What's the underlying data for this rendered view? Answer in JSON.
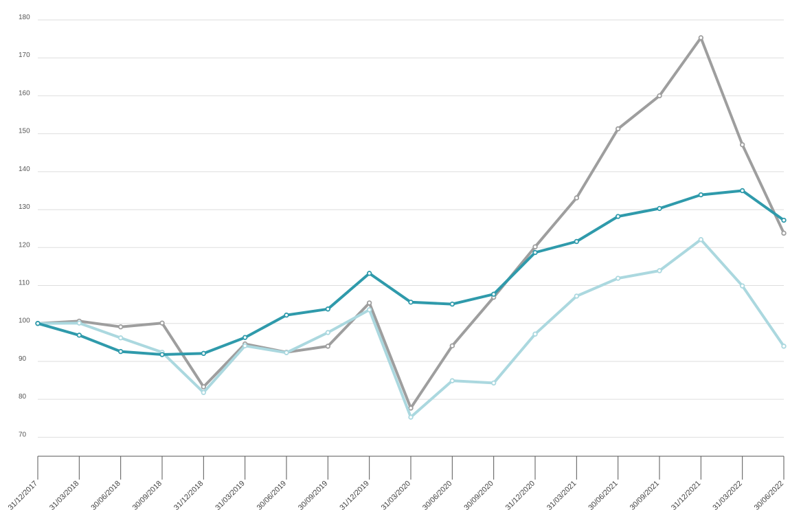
{
  "chart_data": {
    "type": "line",
    "title": "",
    "xlabel": "",
    "ylabel": "",
    "ylim": [
      65,
      180
    ],
    "y_ticks": [
      70,
      80,
      90,
      100,
      110,
      120,
      130,
      140,
      150,
      160,
      170,
      180
    ],
    "grid": true,
    "legend": "none",
    "categories": [
      "31/12/2017",
      "31/03/2018",
      "30/06/2018",
      "30/09/2018",
      "31/12/2018",
      "31/03/2019",
      "30/06/2019",
      "30/09/2019",
      "31/12/2019",
      "31/03/2020",
      "30/06/2020",
      "30/09/2020",
      "31/12/2020",
      "31/03/2021",
      "30/06/2021",
      "30/09/2021",
      "31/12/2021",
      "31/03/2022",
      "30/06/2022"
    ],
    "series": [
      {
        "color": "#9e9e9e",
        "values": [
          100,
          100.6,
          99.1,
          100.1,
          83.3,
          94.6,
          92.4,
          94.0,
          105.4,
          77.7,
          94.1,
          106.9,
          120.2,
          133.1,
          151.3,
          160.0,
          175.3,
          147.1,
          123.8
        ]
      },
      {
        "color": "#abd8df",
        "values": [
          100,
          100.1,
          96.2,
          92.4,
          81.8,
          94.1,
          92.3,
          97.6,
          103.6,
          75.3,
          84.9,
          84.3,
          97.2,
          107.2,
          111.9,
          113.9,
          122.1,
          109.9,
          94.0
        ]
      },
      {
        "color": "#2f9aab",
        "values": [
          100,
          96.9,
          92.6,
          91.8,
          92.1,
          96.3,
          102.2,
          103.8,
          113.2,
          105.6,
          105.1,
          107.7,
          118.7,
          121.6,
          128.2,
          130.3,
          133.9,
          135.0,
          127.2
        ]
      }
    ]
  }
}
